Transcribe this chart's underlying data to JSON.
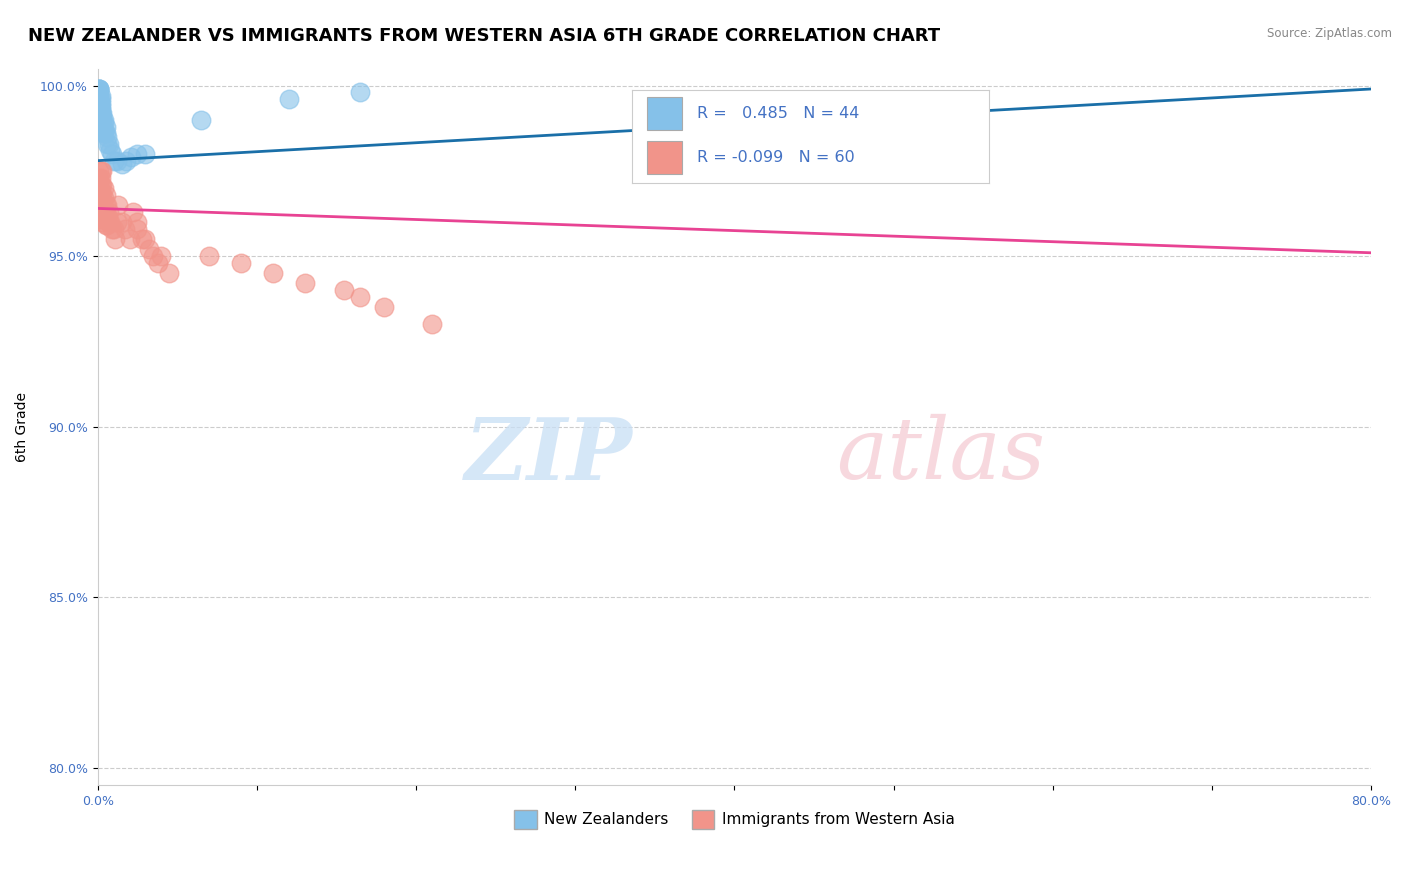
{
  "title": "NEW ZEALANDER VS IMMIGRANTS FROM WESTERN ASIA 6TH GRADE CORRELATION CHART",
  "source": "Source: ZipAtlas.com",
  "ylabel": "6th Grade",
  "xlim": [
    0.0,
    0.8
  ],
  "ylim": [
    0.795,
    1.005
  ],
  "xticks": [
    0.0,
    0.1,
    0.2,
    0.3,
    0.4,
    0.5,
    0.6,
    0.7,
    0.8
  ],
  "yticks": [
    0.8,
    0.85,
    0.9,
    0.95,
    1.0
  ],
  "xtick_labels": [
    "0.0%",
    "",
    "",
    "",
    "",
    "",
    "",
    "",
    "80.0%"
  ],
  "ytick_labels": [
    "80.0%",
    "85.0%",
    "90.0%",
    "95.0%",
    "100.0%"
  ],
  "legend1_label": "New Zealanders",
  "legend2_label": "Immigrants from Western Asia",
  "R1": 0.485,
  "N1": 44,
  "R2": -0.099,
  "N2": 60,
  "color_blue": "#85c1e9",
  "color_blue_line": "#1a6fa8",
  "color_pink": "#f1948a",
  "color_pink_line": "#e84393",
  "blue_scatter_x": [
    0.001,
    0.001,
    0.001,
    0.001,
    0.001,
    0.001,
    0.001,
    0.001,
    0.001,
    0.002,
    0.002,
    0.002,
    0.002,
    0.002,
    0.002,
    0.002,
    0.002,
    0.003,
    0.003,
    0.003,
    0.003,
    0.003,
    0.003,
    0.004,
    0.004,
    0.004,
    0.004,
    0.005,
    0.005,
    0.006,
    0.006,
    0.007,
    0.008,
    0.009,
    0.01,
    0.012,
    0.015,
    0.018,
    0.021,
    0.025,
    0.03,
    0.065,
    0.12,
    0.165
  ],
  "blue_scatter_y": [
    0.999,
    0.999,
    0.999,
    0.999,
    0.998,
    0.997,
    0.996,
    0.995,
    0.994,
    0.997,
    0.996,
    0.995,
    0.994,
    0.993,
    0.992,
    0.991,
    0.99,
    0.992,
    0.991,
    0.99,
    0.989,
    0.988,
    0.987,
    0.99,
    0.989,
    0.987,
    0.986,
    0.988,
    0.986,
    0.985,
    0.983,
    0.983,
    0.981,
    0.98,
    0.978,
    0.978,
    0.977,
    0.978,
    0.979,
    0.98,
    0.98,
    0.99,
    0.996,
    0.998
  ],
  "pink_scatter_x": [
    0.001,
    0.001,
    0.001,
    0.001,
    0.001,
    0.001,
    0.002,
    0.002,
    0.002,
    0.002,
    0.002,
    0.002,
    0.002,
    0.002,
    0.003,
    0.003,
    0.003,
    0.003,
    0.003,
    0.003,
    0.004,
    0.004,
    0.004,
    0.004,
    0.005,
    0.005,
    0.005,
    0.005,
    0.006,
    0.006,
    0.006,
    0.007,
    0.007,
    0.008,
    0.009,
    0.01,
    0.011,
    0.012,
    0.013,
    0.015,
    0.017,
    0.02,
    0.022,
    0.025,
    0.025,
    0.028,
    0.03,
    0.032,
    0.035,
    0.038,
    0.04,
    0.045,
    0.07,
    0.09,
    0.11,
    0.13,
    0.155,
    0.165,
    0.18,
    0.21
  ],
  "pink_scatter_y": [
    0.975,
    0.973,
    0.971,
    0.969,
    0.967,
    0.965,
    0.975,
    0.973,
    0.971,
    0.969,
    0.967,
    0.965,
    0.963,
    0.961,
    0.975,
    0.971,
    0.968,
    0.965,
    0.963,
    0.96,
    0.97,
    0.967,
    0.964,
    0.961,
    0.968,
    0.965,
    0.962,
    0.959,
    0.965,
    0.962,
    0.959,
    0.963,
    0.96,
    0.96,
    0.958,
    0.958,
    0.955,
    0.96,
    0.965,
    0.96,
    0.958,
    0.955,
    0.963,
    0.96,
    0.958,
    0.955,
    0.955,
    0.952,
    0.95,
    0.948,
    0.95,
    0.945,
    0.95,
    0.948,
    0.945,
    0.942,
    0.94,
    0.938,
    0.935,
    0.93
  ],
  "pink_line_x0": 0.0,
  "pink_line_y0": 0.964,
  "pink_line_x1": 0.8,
  "pink_line_y1": 0.951,
  "blue_line_x0": 0.0,
  "blue_line_y0": 0.978,
  "blue_line_x1": 0.8,
  "blue_line_y1": 0.999,
  "grid_color": "#cccccc",
  "background_color": "#ffffff",
  "title_fontsize": 13,
  "axis_label_fontsize": 10,
  "tick_fontsize": 9,
  "legend_fontsize": 12
}
